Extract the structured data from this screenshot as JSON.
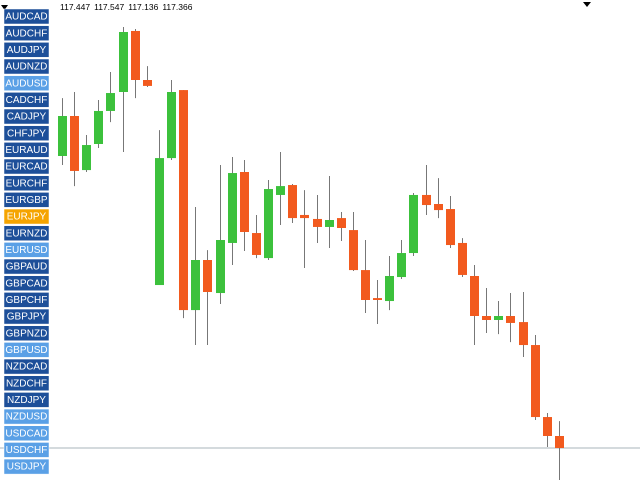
{
  "symbols": [
    {
      "label": "AUDCAD",
      "color": "#1d4f99"
    },
    {
      "label": "AUDCHF",
      "color": "#1d4f99"
    },
    {
      "label": "AUDJPY",
      "color": "#1d4f99"
    },
    {
      "label": "AUDNZD",
      "color": "#1d4f99"
    },
    {
      "label": "AUDUSD",
      "color": "#5aa0e6"
    },
    {
      "label": "CADCHF",
      "color": "#1d4f99"
    },
    {
      "label": "CADJPY",
      "color": "#1d4f99"
    },
    {
      "label": "CHFJPY",
      "color": "#1d4f99"
    },
    {
      "label": "EURAUD",
      "color": "#1d4f99"
    },
    {
      "label": "EURCAD",
      "color": "#1d4f99"
    },
    {
      "label": "EURCHF",
      "color": "#1d4f99"
    },
    {
      "label": "EURGBP",
      "color": "#1d4f99"
    },
    {
      "label": "EURJPY",
      "color": "#f5a400"
    },
    {
      "label": "EURNZD",
      "color": "#1d4f99"
    },
    {
      "label": "EURUSD",
      "color": "#5aa0e6"
    },
    {
      "label": "GBPAUD",
      "color": "#1d4f99"
    },
    {
      "label": "GBPCAD",
      "color": "#1d4f99"
    },
    {
      "label": "GBPCHF",
      "color": "#1d4f99"
    },
    {
      "label": "GBPJPY",
      "color": "#1d4f99"
    },
    {
      "label": "GBPNZD",
      "color": "#1d4f99"
    },
    {
      "label": "GBPUSD",
      "color": "#5aa0e6"
    },
    {
      "label": "NZDCAD",
      "color": "#1d4f99"
    },
    {
      "label": "NZDCHF",
      "color": "#1d4f99"
    },
    {
      "label": "NZDJPY",
      "color": "#1d4f99"
    },
    {
      "label": "NZDUSD",
      "color": "#5aa0e6"
    },
    {
      "label": "USDCAD",
      "color": "#5aa0e6"
    },
    {
      "label": "USDCHF",
      "color": "#5aa0e6"
    },
    {
      "label": "USDJPY",
      "color": "#5aa0e6"
    }
  ],
  "chart_data": {
    "type": "candlestick",
    "up_color": "#3cc13c",
    "down_color": "#f25a1e",
    "ylim": [
      117.15,
      120.39
    ],
    "open": [
      119.337,
      119.607,
      119.242,
      119.418,
      119.641,
      119.769,
      120.181,
      119.85,
      118.466,
      119.323,
      119.782,
      118.297,
      118.635,
      118.412,
      118.75,
      119.229,
      118.817,
      118.648,
      119.074,
      119.141,
      118.939,
      118.912,
      118.858,
      118.918,
      118.837,
      118.567,
      118.378,
      118.358,
      118.52,
      118.682,
      119.074,
      119.013,
      118.979,
      118.75,
      118.527,
      118.257,
      118.23,
      118.257,
      118.216,
      118.061,
      117.575,
      117.447
    ],
    "high": [
      119.728,
      119.769,
      119.479,
      119.715,
      119.904,
      120.208,
      120.194,
      119.944,
      119.512,
      119.85,
      119.782,
      118.993,
      118.702,
      119.276,
      119.33,
      119.31,
      118.939,
      119.175,
      119.364,
      119.148,
      119.107,
      119.074,
      119.202,
      118.959,
      118.959,
      118.77,
      118.5,
      118.662,
      118.77,
      119.087,
      119.276,
      119.188,
      119.067,
      118.783,
      118.601,
      118.446,
      118.358,
      118.412,
      118.419,
      118.129,
      117.602,
      117.547
    ],
    "low": [
      119.276,
      119.134,
      119.229,
      119.391,
      119.566,
      119.364,
      119.728,
      119.803,
      118.466,
      119.31,
      118.243,
      118.061,
      118.061,
      118.338,
      118.601,
      118.696,
      118.648,
      118.635,
      118.871,
      118.885,
      118.581,
      118.75,
      118.716,
      118.763,
      118.561,
      118.277,
      118.203,
      118.297,
      118.507,
      118.662,
      118.939,
      118.918,
      118.716,
      118.52,
      118.061,
      118.142,
      118.135,
      118.081,
      117.98,
      117.555,
      117.373,
      117.136
    ],
    "close": [
      119.607,
      119.236,
      119.411,
      119.641,
      119.762,
      120.174,
      119.85,
      119.81,
      119.323,
      119.769,
      118.297,
      118.635,
      118.419,
      118.77,
      119.222,
      118.824,
      118.669,
      119.114,
      119.134,
      118.918,
      118.918,
      118.858,
      118.905,
      118.851,
      118.567,
      118.365,
      118.365,
      118.527,
      118.682,
      119.074,
      119.006,
      118.972,
      118.736,
      118.534,
      118.257,
      118.23,
      118.257,
      118.21,
      118.061,
      117.575,
      117.447,
      117.366
    ]
  }
}
